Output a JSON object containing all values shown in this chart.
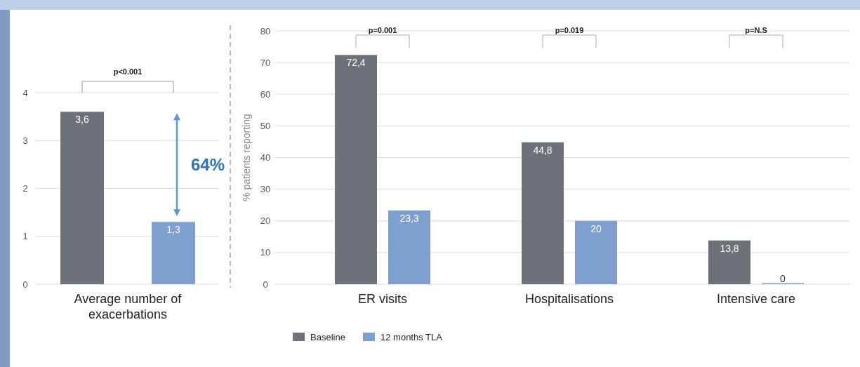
{
  "chart_data": [
    {
      "type": "bar",
      "xlabel": "Average number of exacerbations",
      "categories": [
        null,
        null
      ],
      "values": [
        3.6,
        1.3
      ],
      "colors": [
        "#6d7278",
        "#7f9fcf"
      ],
      "value_labels": [
        "3,6",
        "1,3"
      ],
      "ylim": [
        0,
        4
      ],
      "yticks": [
        0,
        1,
        2,
        3,
        4
      ],
      "grid": "y",
      "legend": false,
      "annotations": [
        "p<0.001",
        "64%"
      ]
    },
    {
      "type": "bar",
      "ylabel": "% patients reporting",
      "categories": [
        "ER visits",
        "Hospitalisations",
        "Intensive care"
      ],
      "series": [
        {
          "name": "Baseline",
          "color": "#6d7278",
          "values": [
            72.4,
            44.8,
            13.8
          ],
          "value_labels": [
            "72,4",
            "44,8",
            "13,8"
          ]
        },
        {
          "name": "12 months TLA",
          "color": "#7f9fcf",
          "values": [
            23.3,
            20,
            0
          ],
          "value_labels": [
            "23,3",
            "20",
            "0"
          ]
        }
      ],
      "ylim": [
        0,
        80
      ],
      "yticks": [
        0,
        10,
        20,
        30,
        40,
        50,
        60,
        70,
        80
      ],
      "grid": "y",
      "legend": "bottom left",
      "annotations": [
        "p=0.001",
        "p=0.019",
        "p=N.S"
      ]
    }
  ]
}
